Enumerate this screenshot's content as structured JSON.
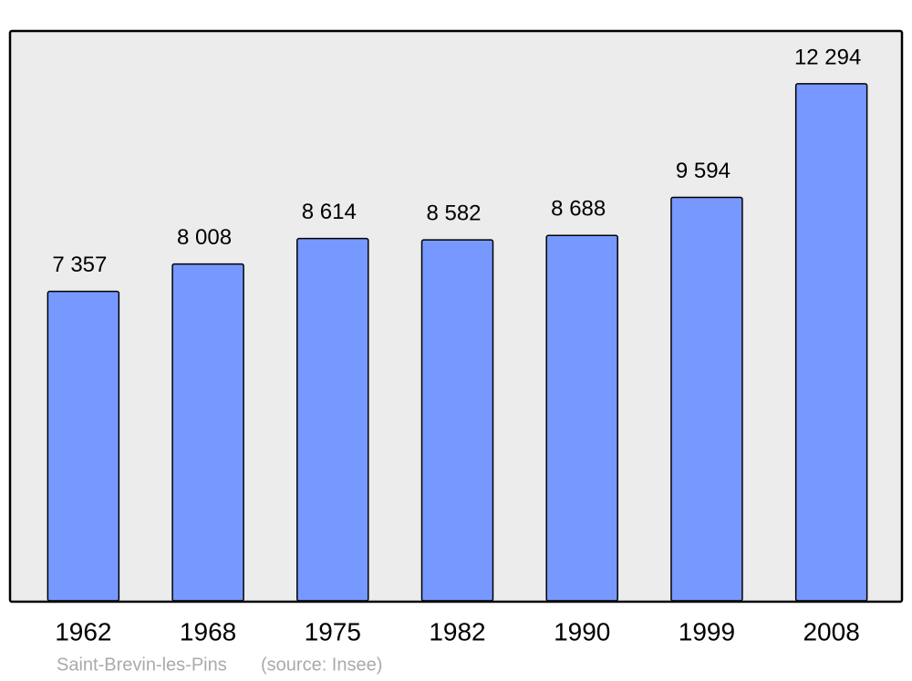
{
  "chart_data": {
    "type": "bar",
    "categories": [
      "1962",
      "1968",
      "1975",
      "1982",
      "1990",
      "1999",
      "2008"
    ],
    "values": [
      7357,
      8008,
      8614,
      8582,
      8688,
      9594,
      12294
    ],
    "value_labels": [
      "7 357",
      "8 008",
      "8 614",
      "8 582",
      "8 688",
      "9 594",
      "12 294"
    ],
    "color": "#7799ff",
    "ylim": [
      0,
      13550
    ],
    "caption": "Saint-Brevin-les-Pins",
    "source": "(source: Insee)"
  }
}
